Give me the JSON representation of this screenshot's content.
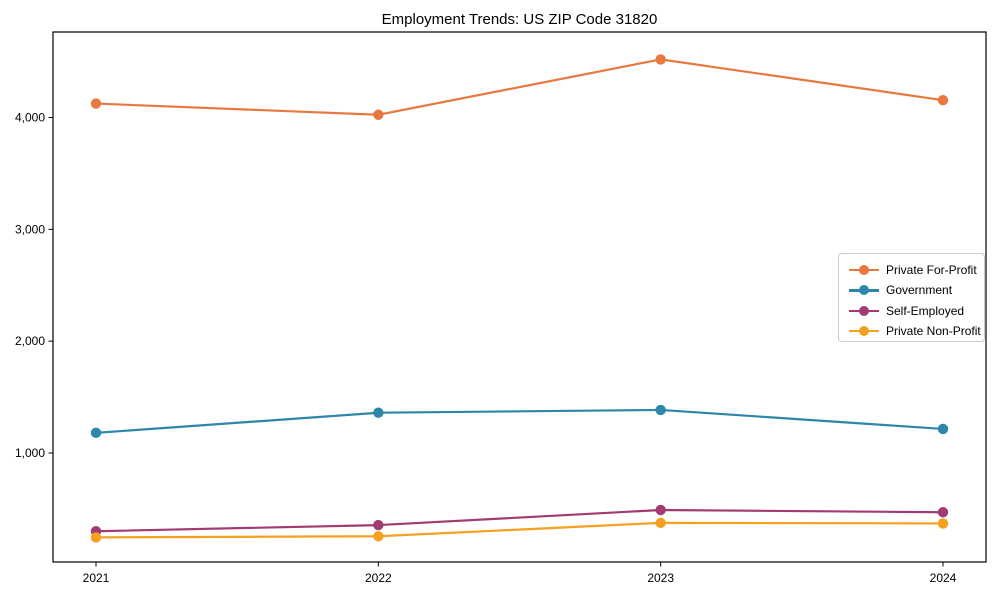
{
  "chart_data": {
    "type": "line",
    "title": "Employment Trends: US ZIP Code 31820",
    "x": [
      "2021",
      "2022",
      "2023",
      "2024"
    ],
    "series": [
      {
        "name": "Private For-Profit",
        "color": "#E8793E",
        "values": [
          4125,
          4025,
          4520,
          4155
        ]
      },
      {
        "name": "Government",
        "color": "#2E86AB",
        "values": [
          1180,
          1360,
          1385,
          1215
        ]
      },
      {
        "name": "Self-Employed",
        "color": "#A23B72",
        "values": [
          300,
          355,
          490,
          470
        ]
      },
      {
        "name": "Private Non-Profit",
        "color": "#F5A01E",
        "values": [
          245,
          255,
          375,
          370
        ]
      }
    ],
    "yticks": [
      1000,
      2000,
      3000,
      4000
    ],
    "ytick_labels": [
      "1,000",
      "2,000",
      "3,000",
      "4,000"
    ],
    "ylim": [
      25,
      4765
    ],
    "xlabel": "",
    "ylabel": "",
    "grid": false,
    "legend_position": "center-right",
    "marker": "circle",
    "frame": true,
    "frame_color": "#000000"
  }
}
